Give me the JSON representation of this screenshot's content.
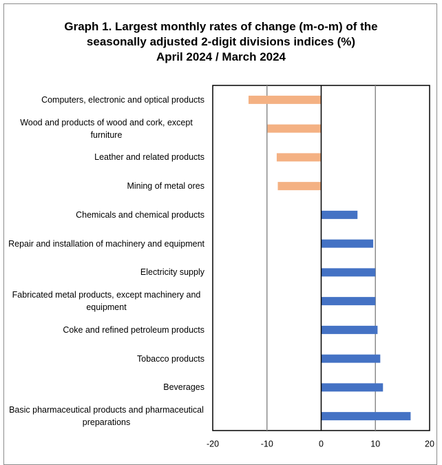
{
  "chart_data": {
    "type": "hbar",
    "title": "Graph 1. Largest monthly rates of change (m-o-m) of the seasonally adjusted 2-digit divisions indices (%)",
    "subtitle": "April 2024 / March 2024",
    "categories": [
      "Computers, electronic and optical products",
      "Wood and products of wood and cork, except furniture",
      "Leather and related products",
      "Mining of metal ores",
      "Chemicals and chemical products",
      "Repair and installation of machinery and equipment",
      "Electricity supply",
      "Fabricated metal products, except machinery and equipment",
      "Coke and refined petroleum products",
      "Tobacco products",
      "Beverages",
      "Basic pharmaceutical products and pharmaceutical preparations"
    ],
    "values": [
      -13.4,
      -9.9,
      -8.2,
      -8.0,
      6.7,
      9.6,
      10.0,
      10.0,
      10.4,
      10.9,
      11.4,
      16.5
    ],
    "colors": [
      "#f4b183",
      "#f4b183",
      "#f4b183",
      "#f4b183",
      "#4472c4",
      "#4472c4",
      "#4472c4",
      "#4472c4",
      "#4472c4",
      "#4472c4",
      "#4472c4",
      "#4472c4"
    ],
    "xlim": [
      -20,
      20
    ],
    "xticks": [
      -20,
      -10,
      0,
      10,
      20
    ],
    "grid": true
  }
}
